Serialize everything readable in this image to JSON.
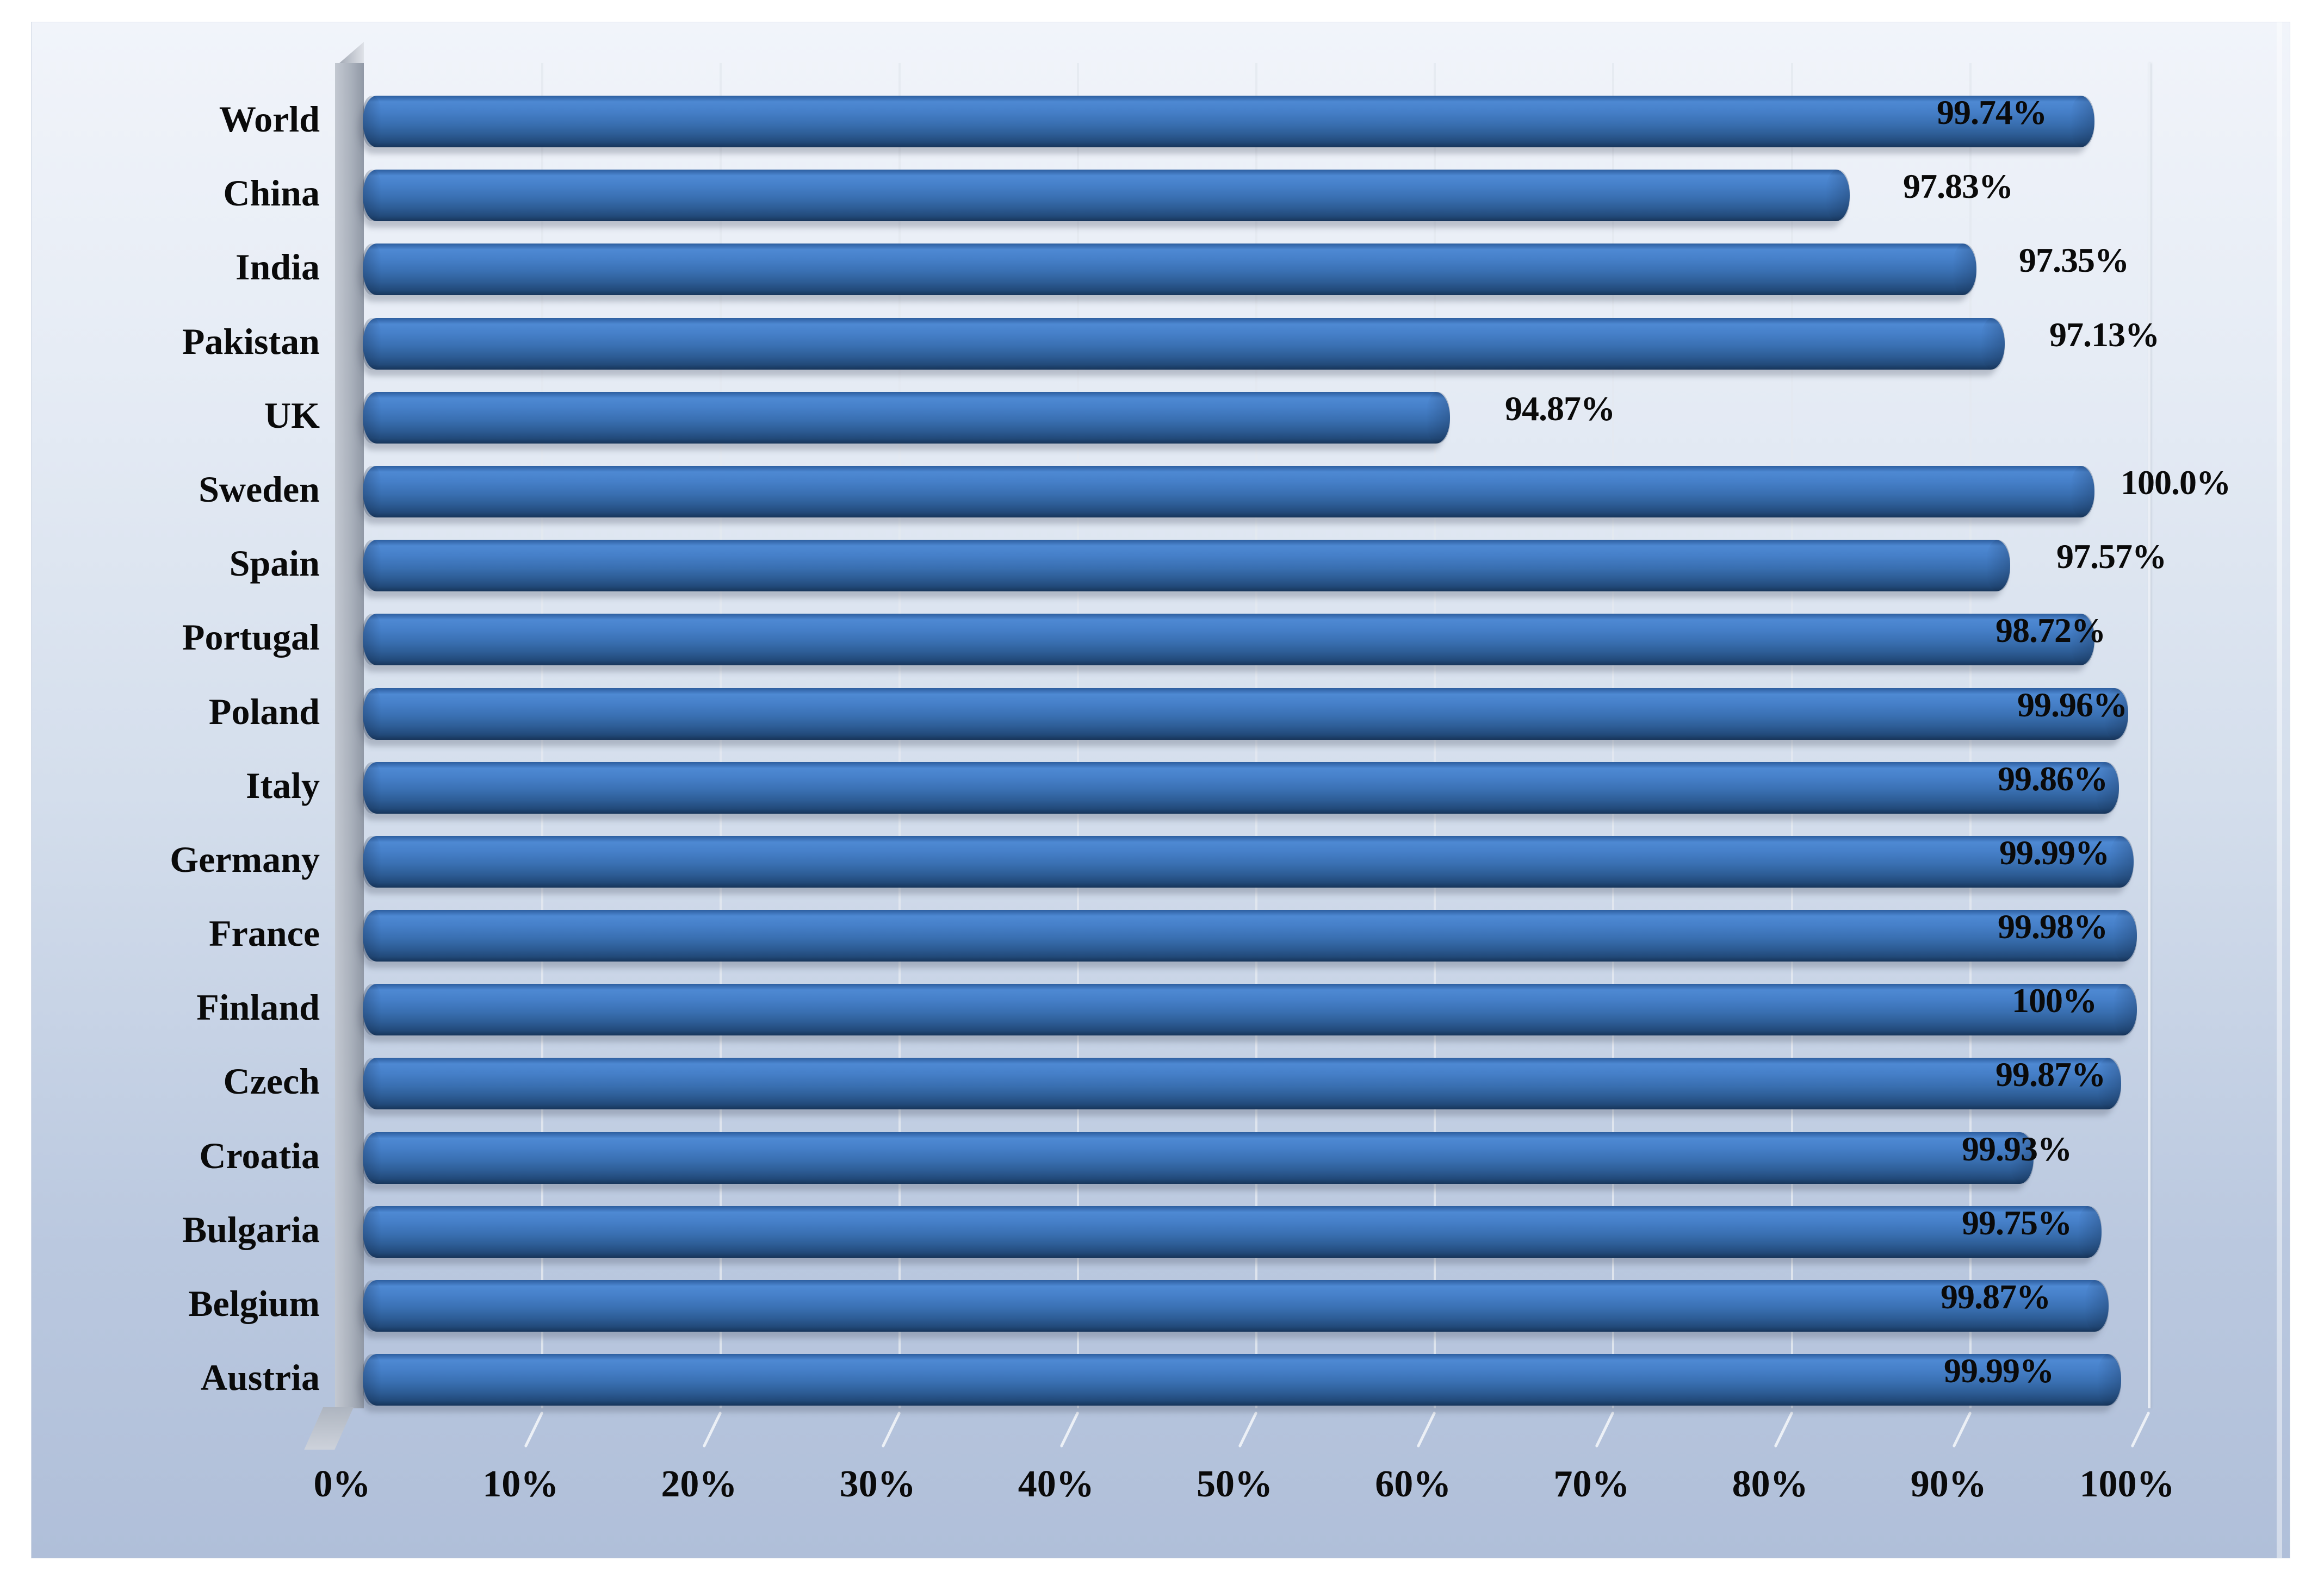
{
  "chart_data": {
    "type": "bar",
    "orientation": "horizontal",
    "title": "",
    "xlabel": "",
    "ylabel": "",
    "legend": null,
    "grid": true,
    "style": "3d-cylinder-excel",
    "bar_color": "#3a72b8",
    "categories": [
      "World",
      "China",
      "India",
      "Pakistan",
      "UK",
      "Sweden",
      "Spain",
      "Portugal",
      "Poland",
      "Italy",
      "Germany",
      "France",
      "Finland",
      "Czech",
      "Croatia",
      "Bulgaria",
      "Belgium",
      "Austria"
    ],
    "values": [
      99.74,
      97.83,
      97.35,
      97.13,
      94.87,
      100.0,
      97.57,
      98.72,
      99.96,
      99.86,
      99.99,
      99.98,
      100,
      99.87,
      99.93,
      99.75,
      99.87,
      99.99
    ],
    "x_axis": {
      "tick_labels": [
        "0%",
        "10%",
        "20%",
        "30%",
        "40%",
        "50%",
        "60%",
        "70%",
        "80%",
        "90%",
        "100%"
      ],
      "range": [
        0,
        100
      ]
    },
    "rows": [
      {
        "category": "World",
        "value": 99.74,
        "value_label": "99.74%",
        "bar_length_pct": 0.97,
        "label_center_pct": 0.912
      },
      {
        "category": "China",
        "value": 97.83,
        "value_label": "97.83%",
        "bar_length_pct": 0.833,
        "label_center_pct": 0.893
      },
      {
        "category": "India",
        "value": 97.35,
        "value_label": "97.35%",
        "bar_length_pct": 0.904,
        "label_center_pct": 0.958
      },
      {
        "category": "Pakistan",
        "value": 97.13,
        "value_label": "97.13%",
        "bar_length_pct": 0.92,
        "label_center_pct": 0.975
      },
      {
        "category": "UK",
        "value": 94.87,
        "value_label": "94.87%",
        "bar_length_pct": 0.609,
        "label_center_pct": 0.67
      },
      {
        "category": "Sweden",
        "value": 100.0,
        "value_label": "100.0%",
        "bar_length_pct": 0.97,
        "label_center_pct": 1.015
      },
      {
        "category": "Spain",
        "value": 97.57,
        "value_label": "97.57%",
        "bar_length_pct": 0.923,
        "label_center_pct": 0.979
      },
      {
        "category": "Portugal",
        "value": 98.72,
        "value_label": "98.72%",
        "bar_length_pct": 0.97,
        "label_center_pct": 0.945
      },
      {
        "category": "Poland",
        "value": 99.96,
        "value_label": "99.96%",
        "bar_length_pct": 0.989,
        "label_center_pct": 0.957
      },
      {
        "category": "Italy",
        "value": 99.86,
        "value_label": "99.86%",
        "bar_length_pct": 0.984,
        "label_center_pct": 0.946
      },
      {
        "category": "Germany",
        "value": 99.99,
        "value_label": "99.99%",
        "bar_length_pct": 0.992,
        "label_center_pct": 0.947
      },
      {
        "category": "France",
        "value": 99.98,
        "value_label": "99.98%",
        "bar_length_pct": 0.994,
        "label_center_pct": 0.946
      },
      {
        "category": "Finland",
        "value": 100,
        "value_label": "100%",
        "bar_length_pct": 0.994,
        "label_center_pct": 0.947
      },
      {
        "category": "Czech",
        "value": 99.87,
        "value_label": "99.87%",
        "bar_length_pct": 0.985,
        "label_center_pct": 0.945
      },
      {
        "category": "Croatia",
        "value": 99.93,
        "value_label": "99.93%",
        "bar_length_pct": 0.936,
        "label_center_pct": 0.926
      },
      {
        "category": "Bulgaria",
        "value": 99.75,
        "value_label": "99.75%",
        "bar_length_pct": 0.974,
        "label_center_pct": 0.926
      },
      {
        "category": "Belgium",
        "value": 99.87,
        "value_label": "99.87%",
        "bar_length_pct": 0.978,
        "label_center_pct": 0.914
      },
      {
        "category": "Austria",
        "value": 99.99,
        "value_label": "99.99%",
        "bar_length_pct": 0.985,
        "label_center_pct": 0.916
      }
    ],
    "colors": {
      "bar_gradient_top": "#4e89d3",
      "bar_gradient_mid": "#396fb1",
      "bar_gradient_bottom": "#17355a",
      "wall_gray": "#aab1bc",
      "background_top": "#f1f4fa",
      "background_bottom": "#b0bfd9",
      "gridline": "#e4e9f0",
      "text": "#0a0a0a"
    }
  }
}
